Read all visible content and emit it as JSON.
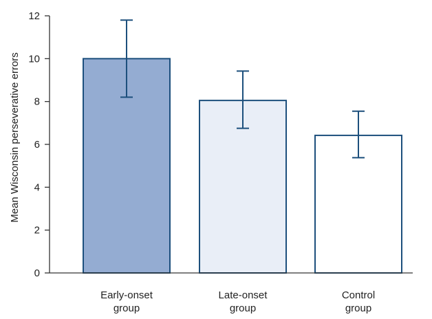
{
  "chart_data": {
    "type": "bar",
    "title": "",
    "xlabel": "",
    "ylabel": "Mean Wisconsin perseverative errors",
    "ylim": [
      0,
      12
    ],
    "yticks": [
      "0",
      "2",
      "4",
      "6",
      "8",
      "10",
      "12"
    ],
    "grid": false,
    "categories": [
      [
        "Early-onset",
        "group"
      ],
      [
        "Late-onset",
        "group"
      ],
      [
        "Control",
        "group"
      ]
    ],
    "values": [
      10.0,
      8.05,
      6.42
    ],
    "error_upper": [
      11.8,
      9.42,
      7.55
    ],
    "error_lower": [
      8.2,
      6.75,
      5.38
    ],
    "bar_fills": [
      "#94acd2",
      "#e9eef7",
      "#ffffff"
    ],
    "bar_stroke": "#1c4f7c",
    "axis_color": "#333333"
  }
}
